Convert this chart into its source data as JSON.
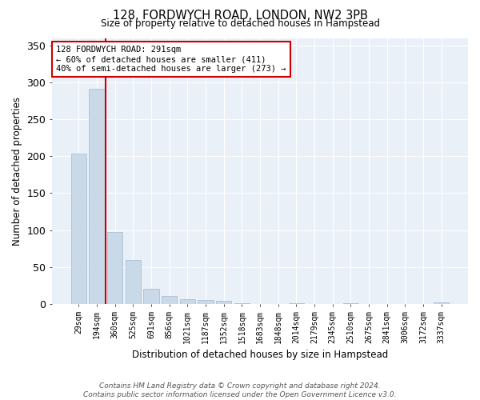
{
  "title1": "128, FORDWYCH ROAD, LONDON, NW2 3PB",
  "title2": "Size of property relative to detached houses in Hampstead",
  "xlabel": "Distribution of detached houses by size in Hampstead",
  "ylabel": "Number of detached properties",
  "bar_labels": [
    "29sqm",
    "194sqm",
    "360sqm",
    "525sqm",
    "691sqm",
    "856sqm",
    "1021sqm",
    "1187sqm",
    "1352sqm",
    "1518sqm",
    "1683sqm",
    "1848sqm",
    "2014sqm",
    "2179sqm",
    "2345sqm",
    "2510sqm",
    "2675sqm",
    "2841sqm",
    "3006sqm",
    "3172sqm",
    "3337sqm"
  ],
  "bar_heights": [
    204,
    291,
    97,
    59,
    21,
    11,
    6,
    5,
    4,
    1,
    0,
    0,
    1,
    0,
    0,
    1,
    0,
    0,
    0,
    0,
    2
  ],
  "bar_color": "#c9d9e8",
  "bar_edge_color": "#a8c0d6",
  "vline_index": 1.5,
  "vline_color": "#cc0000",
  "annotation_title": "128 FORDWYCH ROAD: 291sqm",
  "annotation_line2": "← 60% of detached houses are smaller (411)",
  "annotation_line3": "40% of semi-detached houses are larger (273) →",
  "annotation_box_color": "#ffffff",
  "annotation_box_edge": "#cc0000",
  "ylim": [
    0,
    360
  ],
  "yticks": [
    0,
    50,
    100,
    150,
    200,
    250,
    300,
    350
  ],
  "bg_color": "#eaf0f8",
  "footer": "Contains HM Land Registry data © Crown copyright and database right 2024.\nContains public sector information licensed under the Open Government Licence v3.0."
}
